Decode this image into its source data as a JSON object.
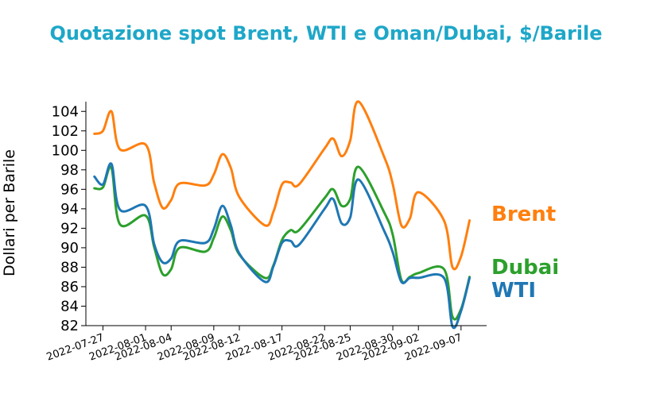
{
  "colors": {
    "title": "#1ea7c8",
    "axis": "#000000"
  },
  "chart_data": {
    "type": "line",
    "title": "Quotazione spot Brent, WTI e Oman/Dubai, $/Barile",
    "xlabel": "",
    "ylabel": "Dollari per Barile",
    "ylim": [
      82,
      105
    ],
    "yticks": [
      82,
      84,
      86,
      88,
      90,
      92,
      94,
      96,
      98,
      100,
      102,
      104
    ],
    "x_tick_labels": [
      "2022-07-27",
      "2022-08-01",
      "2022-08-04",
      "2022-08-09",
      "2022-08-12",
      "2022-08-17",
      "2022-08-22",
      "2022-08-25",
      "2022-08-30",
      "2022-09-02",
      "2022-09-07"
    ],
    "x": [
      "2022-07-26",
      "2022-07-27",
      "2022-07-28",
      "2022-07-29",
      "2022-08-01",
      "2022-08-02",
      "2022-08-03",
      "2022-08-04",
      "2022-08-05",
      "2022-08-08",
      "2022-08-09",
      "2022-08-10",
      "2022-08-11",
      "2022-08-12",
      "2022-08-15",
      "2022-08-16",
      "2022-08-17",
      "2022-08-18",
      "2022-08-19",
      "2022-08-22",
      "2022-08-23",
      "2022-08-24",
      "2022-08-25",
      "2022-08-26",
      "2022-08-29",
      "2022-08-30",
      "2022-08-31",
      "2022-09-01",
      "2022-09-02",
      "2022-09-05",
      "2022-09-06",
      "2022-09-07",
      "2022-09-08",
      "2022-09-09"
    ],
    "legend": "labels at line ends",
    "series": [
      {
        "name": "Brent",
        "color": "#ff7f0e",
        "values": [
          101.7,
          102.0,
          104.0,
          100.1,
          100.6,
          96.7,
          94.1,
          94.9,
          96.6,
          96.4,
          97.5,
          99.6,
          98.2,
          95.2,
          92.3,
          93.7,
          96.5,
          96.7,
          96.5,
          100.2,
          101.2,
          99.4,
          101.0,
          105.0,
          99.3,
          96.5,
          92.3,
          93.0,
          95.7,
          92.8,
          88.0,
          89.1,
          92.8,
          92.8
        ]
      },
      {
        "name": "Dubai",
        "color": "#2ca02c",
        "values": [
          96.1,
          96.2,
          98.2,
          92.4,
          93.3,
          90.1,
          87.3,
          87.8,
          90.0,
          89.6,
          91.0,
          93.2,
          91.8,
          89.3,
          86.9,
          88.2,
          90.8,
          91.8,
          91.8,
          95.1,
          96.0,
          94.3,
          95.0,
          98.3,
          93.6,
          91.3,
          86.7,
          87.0,
          87.4,
          87.8,
          82.9,
          83.7,
          87.0,
          87.0
        ]
      },
      {
        "name": "WTI",
        "color": "#1f77b4",
        "values": [
          97.3,
          96.5,
          98.6,
          93.9,
          94.3,
          90.4,
          88.5,
          88.9,
          90.7,
          90.5,
          91.9,
          94.3,
          92.3,
          89.4,
          86.5,
          88.1,
          90.5,
          90.7,
          90.3,
          94.0,
          95.0,
          92.5,
          93.1,
          97.0,
          91.7,
          89.5,
          86.5,
          86.9,
          86.9,
          86.9,
          81.9,
          83.5,
          86.9,
          86.9
        ]
      }
    ]
  }
}
